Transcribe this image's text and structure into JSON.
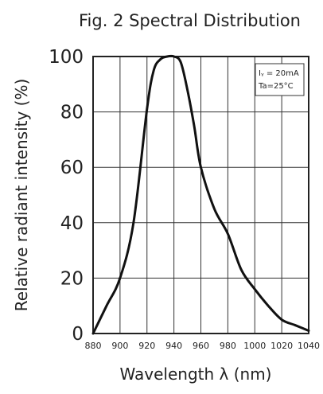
{
  "chart_data": {
    "type": "line",
    "title": "Fig. 2 Spectral Distribution",
    "xlabel": "Wavelength λ (nm)",
    "ylabel": "Relative radiant intensity (%)",
    "xlim": [
      880,
      1040
    ],
    "ylim": [
      0,
      100
    ],
    "x_ticks": [
      "880",
      "900",
      "920",
      "940",
      "960",
      "980",
      "1000",
      "1020",
      "1040"
    ],
    "y_ticks": [
      "0",
      "20",
      "40",
      "60",
      "80",
      "100"
    ],
    "grid": true,
    "annotations": [
      "Iᵧ = 20mA",
      "Ta=25°C"
    ],
    "series": [
      {
        "x": [
          880,
          890,
          900,
          910,
          920,
          925,
          930,
          935,
          940,
          945,
          950,
          955,
          960,
          970,
          980,
          990,
          1000,
          1010,
          1020,
          1030,
          1040
        ],
        "y": [
          0,
          10,
          20,
          40,
          81,
          95,
          99,
          100,
          100,
          98,
          88,
          75,
          60,
          45,
          36,
          23,
          16,
          10,
          5,
          3,
          1
        ]
      }
    ]
  }
}
